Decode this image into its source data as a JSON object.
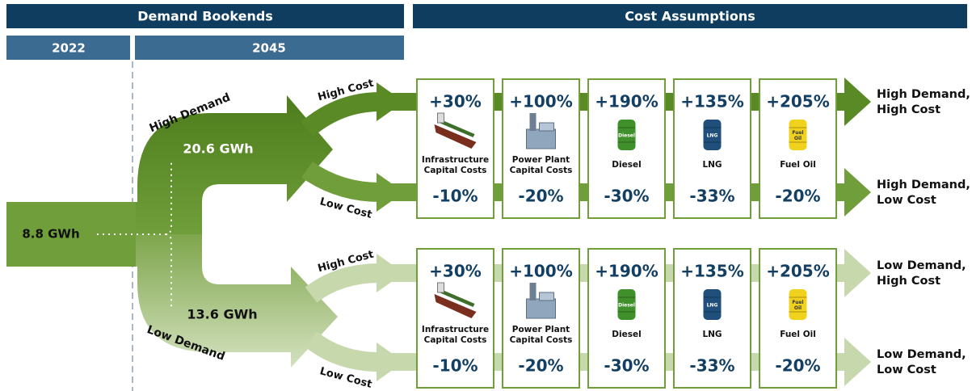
{
  "header": {
    "left": "Demand Bookends",
    "right": "Cost Assumptions",
    "year_start": "2022",
    "year_end": "2045"
  },
  "base": "8.8 GWh",
  "demand": [
    {
      "label": "High Demand",
      "value": "20.6 GWh",
      "branches": [
        "High Cost",
        "Low Cost"
      ],
      "items": [
        {
          "up": "+30%",
          "label": [
            "Infrastructure",
            "Capital Costs"
          ],
          "down": "-10%"
        },
        {
          "up": "+100%",
          "label": [
            "Power Plant",
            "Capital Costs"
          ],
          "down": "-20%"
        },
        {
          "up": "+190%",
          "label": [
            "Diesel"
          ],
          "icon_text": "Diesel",
          "down": "-30%"
        },
        {
          "up": "+135%",
          "label": [
            "LNG"
          ],
          "icon_text": "LNG",
          "down": "-33%"
        },
        {
          "up": "+205%",
          "label": [
            "Fuel Oil"
          ],
          "icon_text": [
            "Fuel",
            "Oil"
          ],
          "down": "-20%"
        }
      ],
      "outcomes": [
        [
          "High Demand,",
          "High Cost"
        ],
        [
          "High Demand,",
          "Low Cost"
        ]
      ]
    },
    {
      "label": "Low Demand",
      "value": "13.6 GWh",
      "branches": [
        "High Cost",
        "Low Cost"
      ],
      "items": [
        {
          "up": "+30%",
          "label": [
            "Infrastructure",
            "Capital Costs"
          ],
          "down": "-10%"
        },
        {
          "up": "+100%",
          "label": [
            "Power Plant",
            "Capital Costs"
          ],
          "down": "-20%"
        },
        {
          "up": "+190%",
          "label": [
            "Diesel"
          ],
          "icon_text": "Diesel",
          "down": "-30%"
        },
        {
          "up": "+135%",
          "label": [
            "LNG"
          ],
          "icon_text": "LNG",
          "down": "-33%"
        },
        {
          "up": "+205%",
          "label": [
            "Fuel Oil"
          ],
          "icon_text": [
            "Fuel",
            "Oil"
          ],
          "down": "-20%"
        }
      ],
      "outcomes": [
        [
          "Low Demand,",
          "High Cost"
        ],
        [
          "Low Demand,",
          "Low Cost"
        ]
      ]
    }
  ]
}
